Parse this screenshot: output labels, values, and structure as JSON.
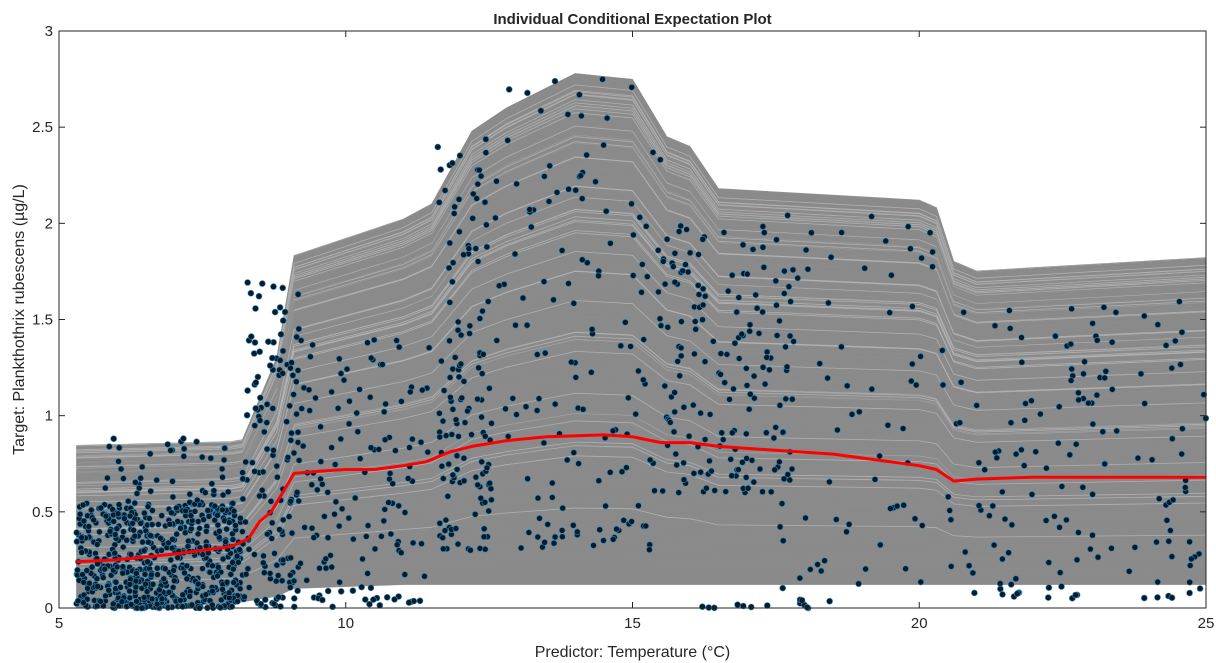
{
  "chart_data": {
    "type": "line",
    "title": "Individual Conditional Expectation Plot",
    "xlabel": "Predictor: Temperature (°C)",
    "ylabel": "Target: Plankthothrix rubescens (µg/L)",
    "xlim": [
      5,
      25
    ],
    "ylim": [
      0,
      3
    ],
    "xticks": [
      5,
      10,
      15,
      20,
      25
    ],
    "yticks": [
      0,
      0.5,
      1,
      1.5,
      2,
      2.5,
      3
    ],
    "xtick_labels": [
      "5",
      "10",
      "15",
      "20",
      "25"
    ],
    "ytick_labels": [
      "0",
      "0.5",
      "1",
      "1.5",
      "2",
      "2.5",
      "3"
    ],
    "grid": false,
    "legend": "none",
    "colors": {
      "ice_lines": "#8c8c8c",
      "pdp_line": "#ff0000",
      "observation_points": "#0b1a26",
      "point_edge": "#2e8fc4"
    },
    "series": [
      {
        "role": "average",
        "x": [
          5.3,
          6,
          7,
          8,
          8.3,
          8.5,
          8.7,
          9,
          9.1,
          9.5,
          10,
          10.5,
          11,
          11.4,
          11.8,
          12.2,
          12.8,
          13.5,
          14.5,
          15,
          15.5,
          16,
          16.5,
          17,
          17.5,
          18,
          18.5,
          19,
          19.5,
          20,
          20.3,
          20.6,
          21,
          22,
          23,
          24,
          25
        ],
        "y": [
          0.24,
          0.25,
          0.28,
          0.32,
          0.36,
          0.45,
          0.5,
          0.65,
          0.7,
          0.71,
          0.72,
          0.72,
          0.74,
          0.76,
          0.81,
          0.84,
          0.87,
          0.89,
          0.9,
          0.89,
          0.86,
          0.86,
          0.84,
          0.83,
          0.82,
          0.81,
          0.8,
          0.78,
          0.76,
          0.74,
          0.72,
          0.66,
          0.67,
          0.68,
          0.68,
          0.68,
          0.68
        ]
      }
    ],
    "ice_curves": {
      "count": 500,
      "x": [
        5.3,
        8,
        8.2,
        8.8,
        9.1,
        11,
        11.5,
        12.2,
        12.8,
        14,
        15,
        15.6,
        16,
        16.5,
        20,
        20.3,
        20.6,
        21,
        25
      ],
      "min_curve": [
        0.0,
        0.02,
        0.03,
        0.06,
        0.1,
        0.12,
        0.12,
        0.12,
        0.12,
        0.12,
        0.12,
        0.12,
        0.12,
        0.12,
        0.12,
        0.12,
        0.12,
        0.12,
        0.12
      ],
      "max_curve": [
        0.84,
        0.86,
        0.87,
        1.3,
        1.83,
        2.02,
        2.1,
        2.48,
        2.6,
        2.78,
        2.75,
        2.45,
        2.4,
        2.18,
        2.12,
        2.08,
        1.8,
        1.75,
        1.82
      ]
    },
    "observations_note_count": 3000,
    "observation_density": [
      {
        "x_range": [
          5.3,
          8.2
        ],
        "y_range": [
          0.0,
          0.55
        ],
        "n": 1100
      },
      {
        "x_range": [
          5.8,
          8.0
        ],
        "y_range": [
          0.45,
          0.9
        ],
        "n": 110
      },
      {
        "x_range": [
          8.2,
          9.2
        ],
        "y_range": [
          0.0,
          1.7
        ],
        "n": 260
      },
      {
        "x_range": [
          9.0,
          11.5
        ],
        "y_range": [
          0.0,
          1.4
        ],
        "n": 260
      },
      {
        "x_range": [
          11.6,
          12.5
        ],
        "y_range": [
          0.3,
          2.45
        ],
        "n": 220
      },
      {
        "x_range": [
          12.3,
          15.5
        ],
        "y_range": [
          0.3,
          2.78
        ],
        "n": 280
      },
      {
        "x_range": [
          15.5,
          17.8
        ],
        "y_range": [
          0.6,
          2.0
        ],
        "n": 300
      },
      {
        "x_range": [
          17.5,
          20.3
        ],
        "y_range": [
          0.1,
          2.1
        ],
        "n": 120
      },
      {
        "x_range": [
          20.4,
          25.0
        ],
        "y_range": [
          0.05,
          1.6
        ],
        "n": 280
      },
      {
        "x_range": [
          15.8,
          18.5
        ],
        "y_range": [
          0.0,
          0.05
        ],
        "n": 25
      }
    ]
  }
}
